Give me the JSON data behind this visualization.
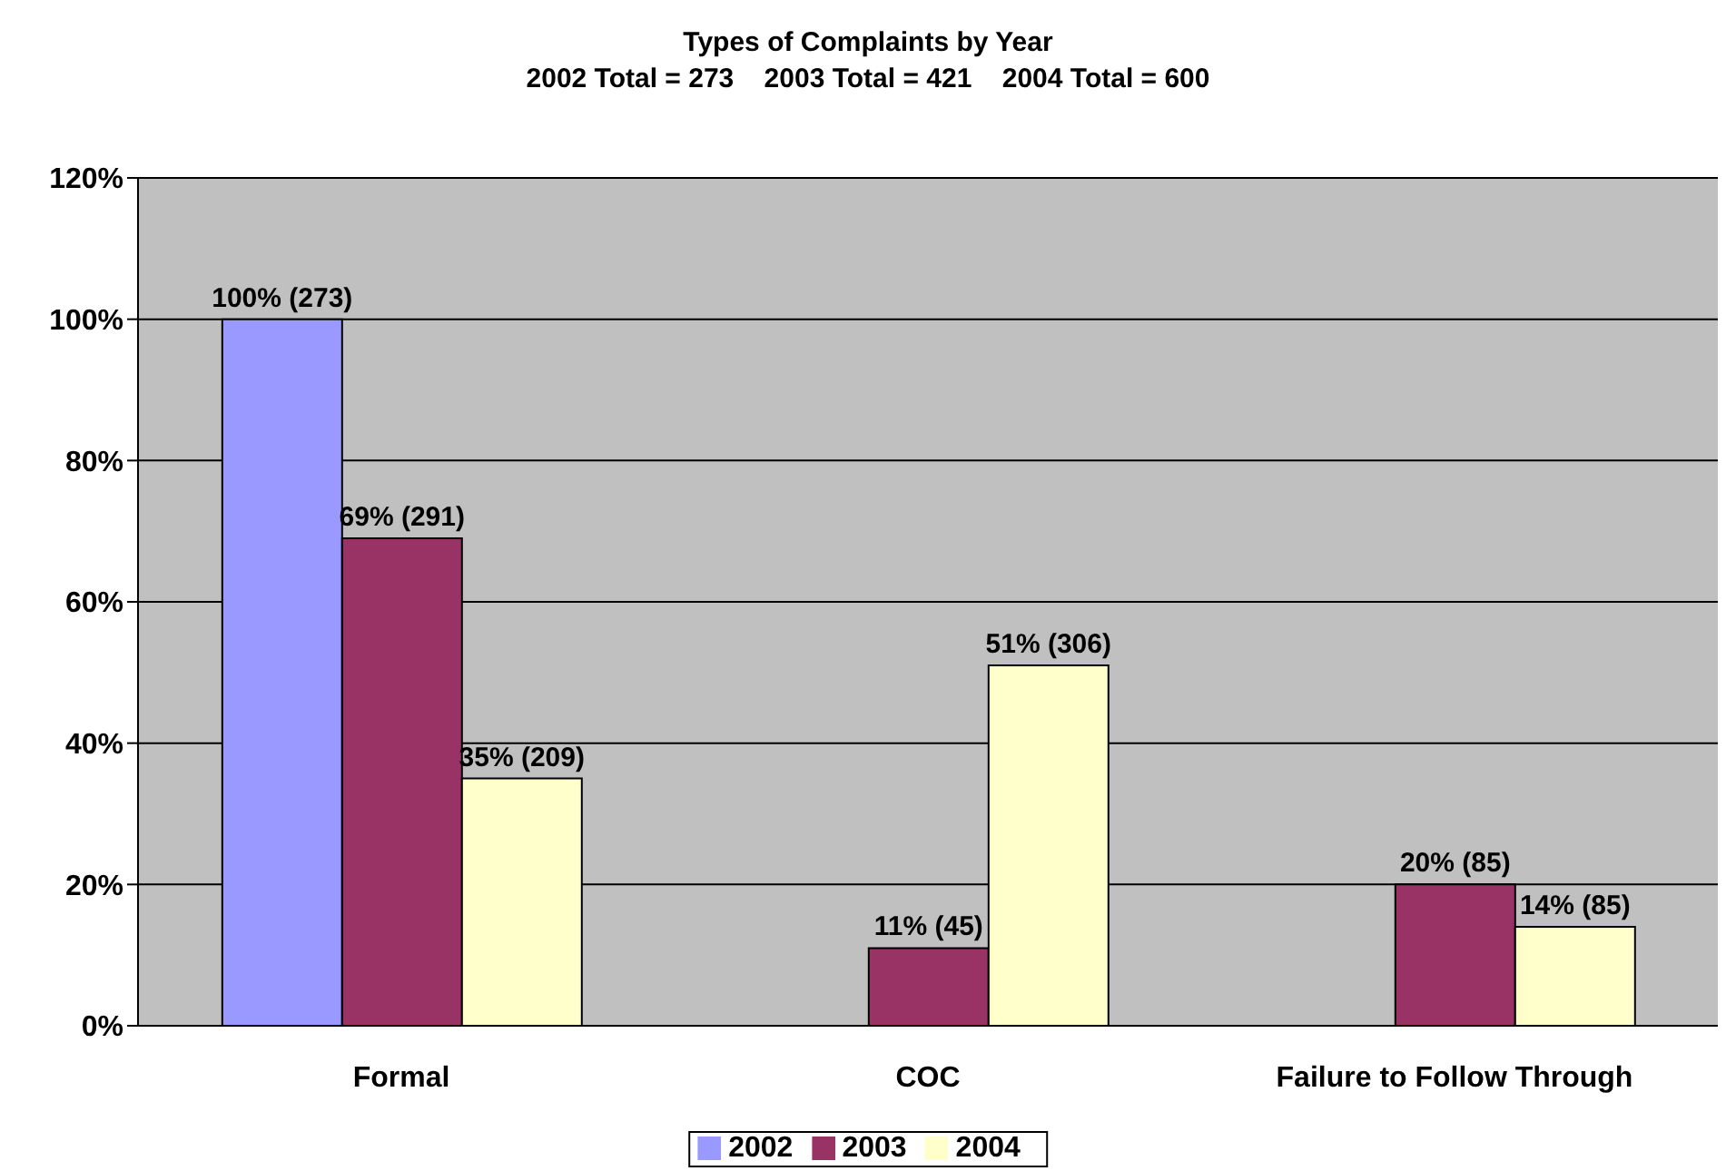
{
  "chart_data": {
    "type": "bar",
    "title": "Types of Complaints by Year",
    "subtitle": "2002 Total = 273    2003 Total = 421    2004 Total = 600",
    "categories": [
      "Formal",
      "COC",
      "Failure to Follow Through"
    ],
    "series": [
      {
        "name": "2002",
        "color": "#9999ff",
        "values": [
          100,
          null,
          null
        ],
        "value_labels": [
          "100% (273)",
          null,
          null
        ]
      },
      {
        "name": "2003",
        "color": "#993366",
        "values": [
          69,
          11,
          20
        ],
        "value_labels": [
          "69% (291)",
          "11% (45)",
          "20% (85)"
        ]
      },
      {
        "name": "2004",
        "color": "#ffffcc",
        "values": [
          35,
          51,
          14
        ],
        "value_labels": [
          "35% (209)",
          "51% (306)",
          "14% (85)"
        ]
      }
    ],
    "ylim": [
      0,
      120
    ],
    "yticks": [
      {
        "value": 0,
        "label": "0%"
      },
      {
        "value": 20,
        "label": "20%"
      },
      {
        "value": 40,
        "label": "40%"
      },
      {
        "value": 60,
        "label": "60%"
      },
      {
        "value": 80,
        "label": "80%"
      },
      {
        "value": 100,
        "label": "100%"
      },
      {
        "value": 120,
        "label": "120%"
      }
    ],
    "grid": "y",
    "legend": "bottom"
  }
}
